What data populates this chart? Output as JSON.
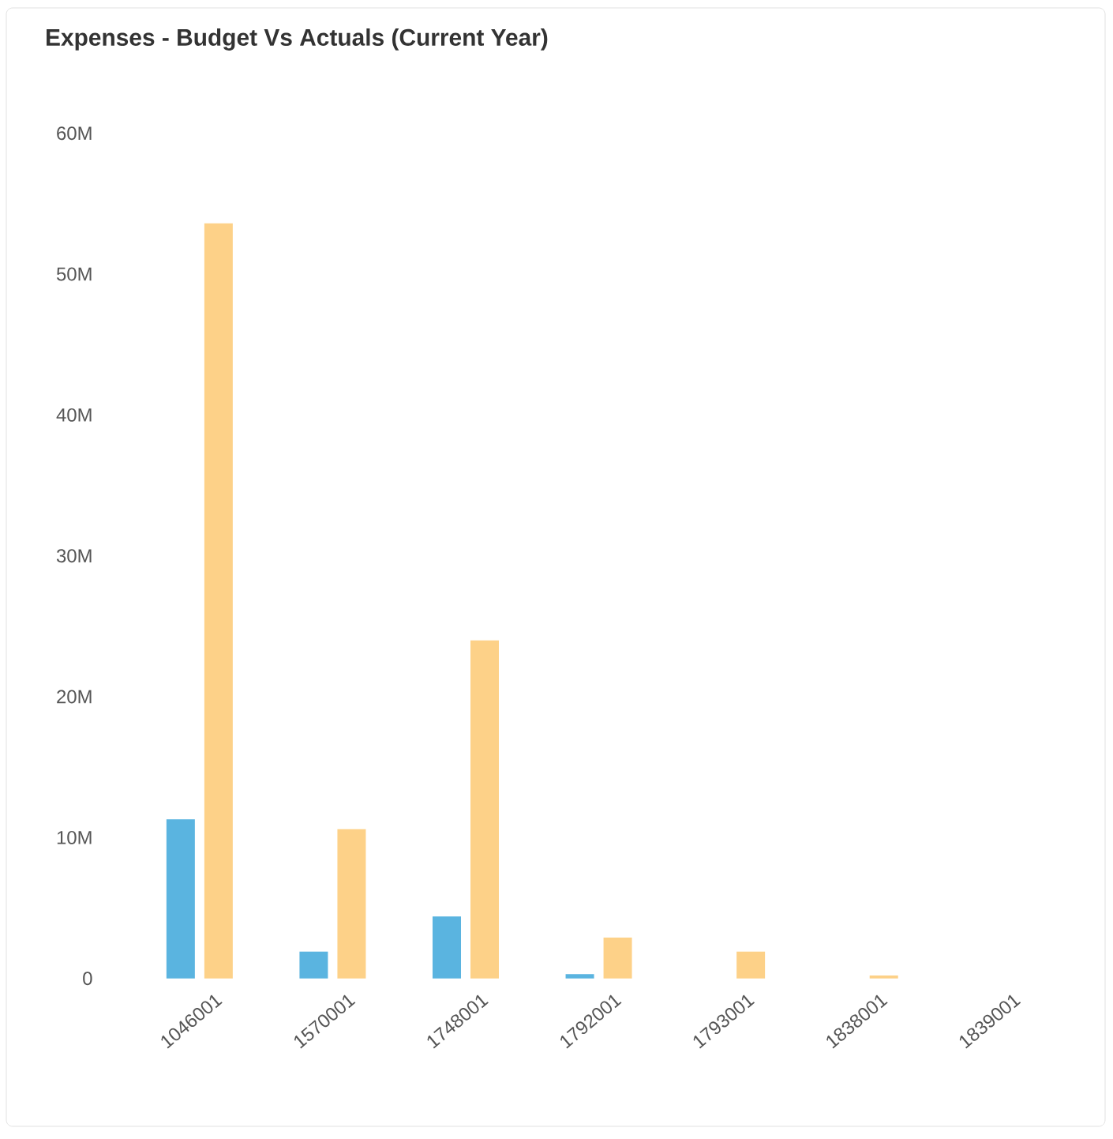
{
  "chart_data": {
    "type": "bar",
    "title": "Expenses - Budget Vs Actuals (Current Year)",
    "categories": [
      "1046001",
      "1570001",
      "1748001",
      "1792001",
      "1793001",
      "1838001",
      "1839001"
    ],
    "series": [
      {
        "color": "#5ab4e0",
        "values": [
          11300000,
          1900000,
          4400000,
          300000,
          null,
          null,
          null
        ]
      },
      {
        "color": "#fdd188",
        "values": [
          53600000,
          10600000,
          24000000,
          2900000,
          1900000,
          200000,
          null
        ]
      }
    ],
    "ylim": [
      0,
      60000000
    ],
    "yticks": [
      0,
      {
        "value": 10000000,
        "label": "10M"
      },
      {
        "value": 20000000,
        "label": "20M"
      },
      {
        "value": 30000000,
        "label": "30M"
      },
      {
        "value": 40000000,
        "label": "40M"
      },
      {
        "value": 50000000,
        "label": "50M"
      },
      {
        "value": 60000000,
        "label": "60M"
      }
    ]
  }
}
